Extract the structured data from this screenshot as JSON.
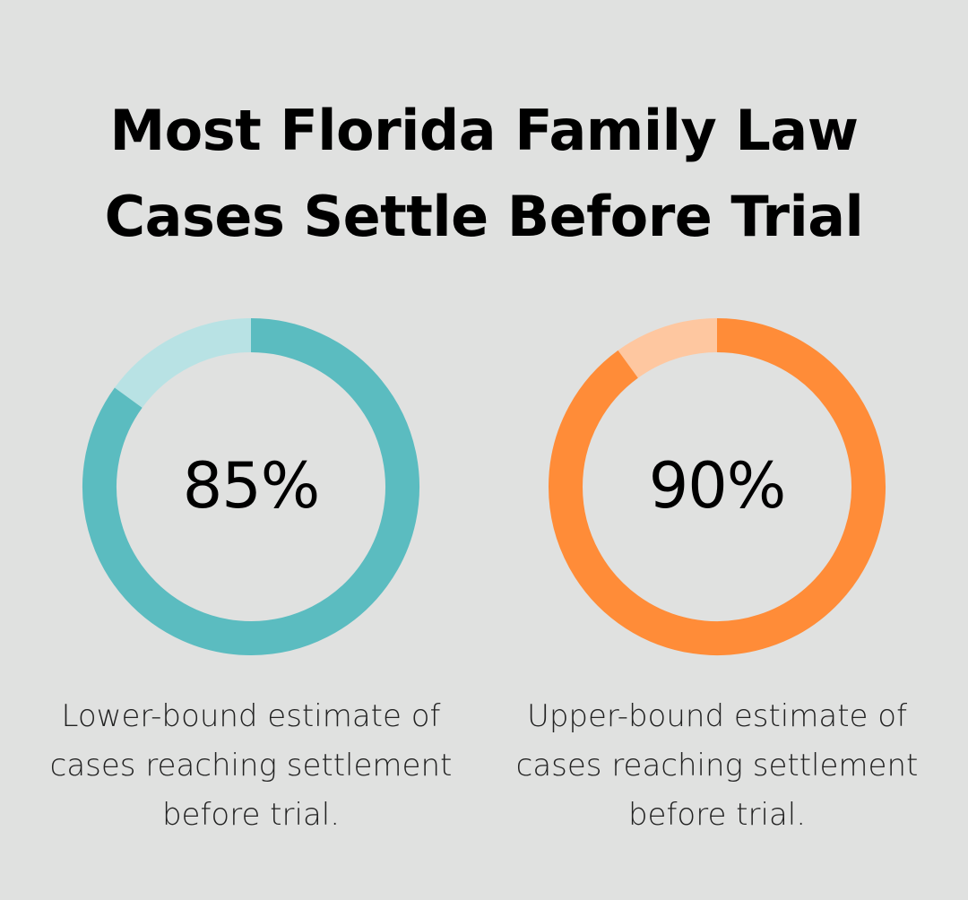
{
  "title_lines": [
    "Most Florida Family Law",
    "Cases Settle Before Trial"
  ],
  "chart_data": [
    {
      "type": "pie",
      "subtype": "donut",
      "value": 85,
      "max": 100,
      "label": "85%",
      "caption_lines": [
        "Lower-bound estimate of",
        "cases reaching settlement",
        "before trial."
      ],
      "color": "#5bbcc0",
      "track_color": "#b8e2e4"
    },
    {
      "type": "pie",
      "subtype": "donut",
      "value": 90,
      "max": 100,
      "label": "90%",
      "caption_lines": [
        "Upper-bound estimate of",
        "cases reaching settlement",
        "before trial."
      ],
      "color": "#ff8c38",
      "track_color": "#fec7a0"
    }
  ],
  "colors": {
    "background": "#e0e1e0",
    "text": "#000000"
  }
}
